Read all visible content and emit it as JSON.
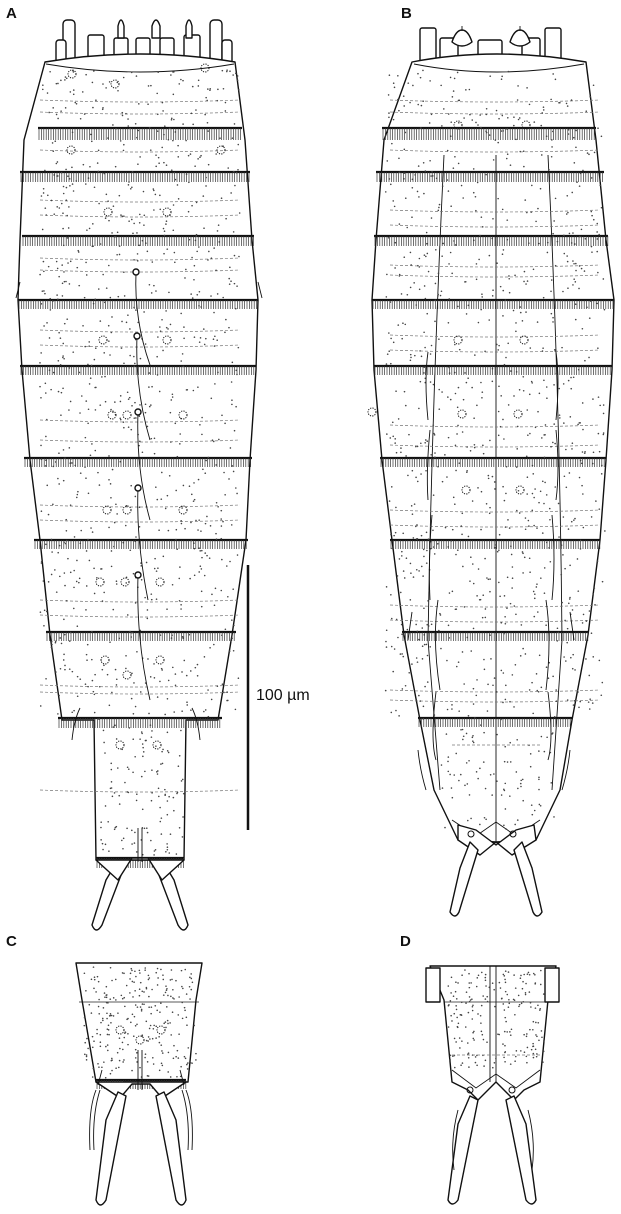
{
  "figure": {
    "panels": [
      {
        "id": "A",
        "label": "A"
      },
      {
        "id": "B",
        "label": "B"
      },
      {
        "id": "C",
        "label": "C"
      },
      {
        "id": "D",
        "label": "D"
      }
    ],
    "scale_bar": {
      "label": "100 µm"
    }
  }
}
